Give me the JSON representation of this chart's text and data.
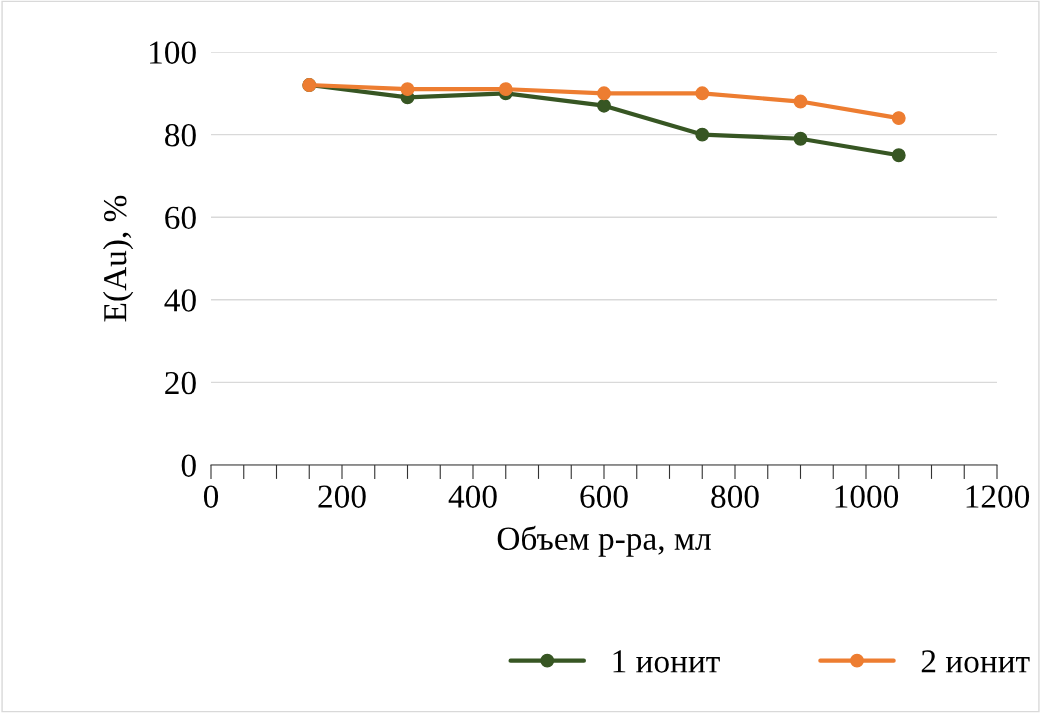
{
  "chart_data": {
    "type": "line",
    "xlabel": "Объем р-ра, мл",
    "ylabel": "E(Au), %",
    "x": [
      150,
      300,
      450,
      600,
      750,
      900,
      1050
    ],
    "series": [
      {
        "name": "1 ионит",
        "color": "#375623",
        "values": [
          92,
          89,
          90,
          87,
          80,
          79,
          75
        ]
      },
      {
        "name": "2 ионит",
        "color": "#ed7d31",
        "values": [
          92,
          91,
          91,
          90,
          90,
          88,
          84
        ]
      }
    ],
    "xlim": [
      0,
      1200
    ],
    "xticks": [
      0,
      {
        "value": 50,
        "label": null
      },
      {
        "value": 100,
        "label": null
      },
      {
        "value": 150,
        "label": null
      },
      200,
      {
        "value": 250,
        "label": null
      },
      {
        "value": 300,
        "label": null
      },
      {
        "value": 350,
        "label": null
      },
      400,
      {
        "value": 450,
        "label": null
      },
      {
        "value": 500,
        "label": null
      },
      {
        "value": 550,
        "label": null
      },
      600,
      {
        "value": 650,
        "label": null
      },
      {
        "value": 700,
        "label": null
      },
      {
        "value": 750,
        "label": null
      },
      800,
      {
        "value": 850,
        "label": null
      },
      {
        "value": 900,
        "label": null
      },
      {
        "value": 950,
        "label": null
      },
      1000,
      {
        "value": 1050,
        "label": null
      },
      {
        "value": 1100,
        "label": null
      },
      {
        "value": 1150,
        "label": null
      },
      1200
    ],
    "ylim": [
      0,
      100
    ],
    "yticks": [
      0,
      20,
      40,
      60,
      80,
      100
    ],
    "grid": "y",
    "legend": "bottom",
    "marker": "circle",
    "line_style": "solid"
  }
}
